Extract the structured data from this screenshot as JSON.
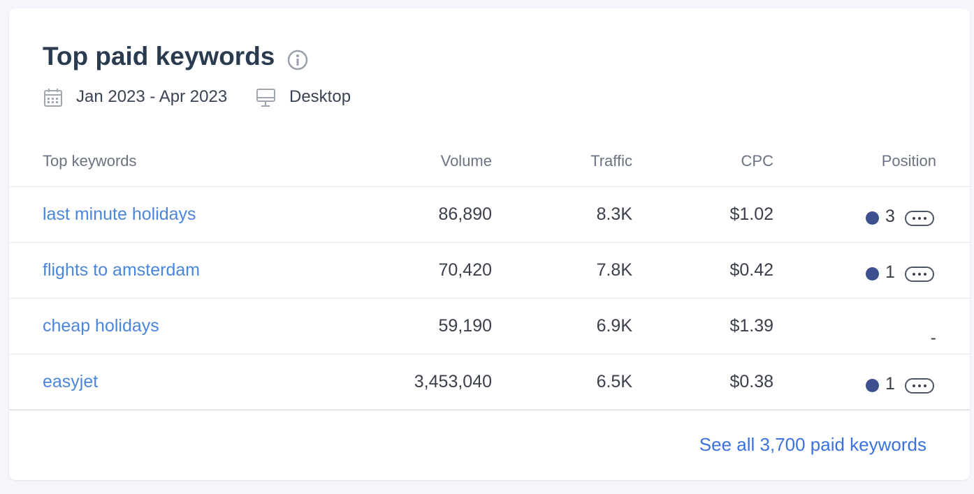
{
  "header": {
    "title": "Top paid keywords",
    "date_range": "Jan 2023 - Apr 2023",
    "device": "Desktop"
  },
  "table": {
    "columns": [
      "Top keywords",
      "Volume",
      "Traffic",
      "CPC",
      "Position"
    ],
    "rows": [
      [
        "last minute holidays",
        "86,890",
        "8.3K",
        "$1.02",
        "3"
      ],
      [
        "flights to amsterdam",
        "70,420",
        "7.8K",
        "$0.42",
        "1"
      ],
      [
        "cheap holidays",
        "59,190",
        "6.9K",
        "$1.39",
        "-"
      ],
      [
        "easyjet",
        "3,453,040",
        "6.5K",
        "$0.38",
        "1"
      ]
    ]
  },
  "footer": {
    "link": "See all 3,700 paid keywords"
  }
}
